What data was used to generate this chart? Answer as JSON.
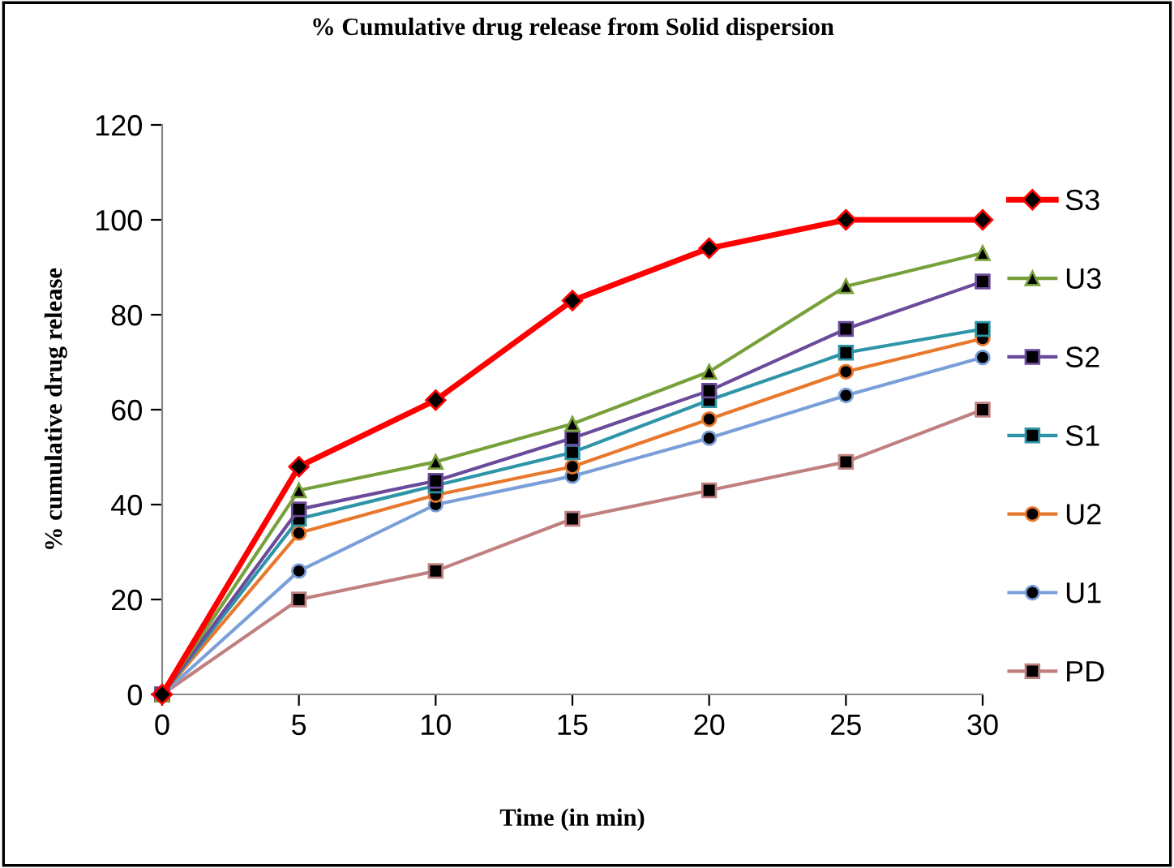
{
  "chart_data": {
    "type": "line",
    "title": "% Cumulative drug release from Solid dispersion",
    "xlabel": "Time (in min)",
    "ylabel": "% cumulative drug release",
    "x": [
      0,
      5,
      10,
      15,
      20,
      25,
      30
    ],
    "series": [
      {
        "name": "S3",
        "color": "#ff0000",
        "marker": "diamond",
        "values": [
          0,
          48,
          62,
          83,
          94,
          100,
          100
        ]
      },
      {
        "name": "U3",
        "color": "#77a03a",
        "marker": "triangle",
        "values": [
          0,
          43,
          49,
          57,
          68,
          86,
          93
        ]
      },
      {
        "name": "S2",
        "color": "#6a4a9a",
        "marker": "square",
        "values": [
          0,
          39,
          45,
          54,
          64,
          77,
          87
        ]
      },
      {
        "name": "S1",
        "color": "#2e95a8",
        "marker": "square",
        "values": [
          0,
          37,
          44,
          51,
          62,
          72,
          77
        ]
      },
      {
        "name": "U2",
        "color": "#e8782c",
        "marker": "circle",
        "values": [
          0,
          34,
          42,
          48,
          58,
          68,
          75
        ]
      },
      {
        "name": "U1",
        "color": "#7a9fd8",
        "marker": "circle",
        "values": [
          0,
          26,
          40,
          46,
          54,
          63,
          71
        ]
      },
      {
        "name": "PD",
        "color": "#c08080",
        "marker": "square",
        "values": [
          0,
          20,
          26,
          37,
          43,
          49,
          60
        ]
      }
    ],
    "xlim": [
      0,
      30
    ],
    "xticks": [
      0,
      5,
      10,
      15,
      20,
      25,
      30
    ],
    "ylim": [
      0,
      120
    ],
    "yticks": [
      0,
      20,
      40,
      60,
      80,
      100,
      120
    ],
    "grid": false,
    "legend": "right"
  }
}
